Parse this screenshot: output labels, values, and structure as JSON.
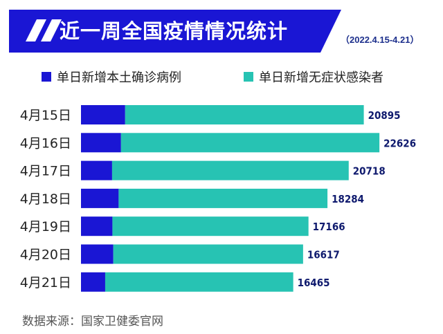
{
  "header": {
    "title": "近一周全国疫情情况统计",
    "date_range": "（2022.4.15-4.21）"
  },
  "legend": [
    {
      "label": "单日新增本土确诊病例",
      "color": "#1a16d4"
    },
    {
      "label": "单日新增无症状感染者",
      "color": "#27c3b3"
    }
  ],
  "colors": {
    "banner": "#1a16d4",
    "confirmed": "#1a16d4",
    "asymptomatic": "#27c3b3",
    "confirmed_value_text": "#ffffff",
    "asymptomatic_value_text": "#0f1a6e"
  },
  "chart_data": {
    "type": "bar",
    "orientation": "horizontal",
    "stacked": true,
    "categories": [
      "4月15日",
      "4月16日",
      "4月17日",
      "4月18日",
      "4月19日",
      "4月20日",
      "4月21日"
    ],
    "series": [
      {
        "name": "单日新增本土确诊病例",
        "values": [
          3867,
          3504,
          2723,
          3297,
          2753,
          2830,
          2119
        ]
      },
      {
        "name": "单日新增无症状感染者",
        "values": [
          20895,
          22626,
          20718,
          18284,
          17166,
          16617,
          16465
        ]
      }
    ],
    "title": "近一周全国疫情情况统计",
    "grid": false,
    "legend_position": "top"
  },
  "footer": {
    "source": "数据来源：国家卫健委官网"
  }
}
